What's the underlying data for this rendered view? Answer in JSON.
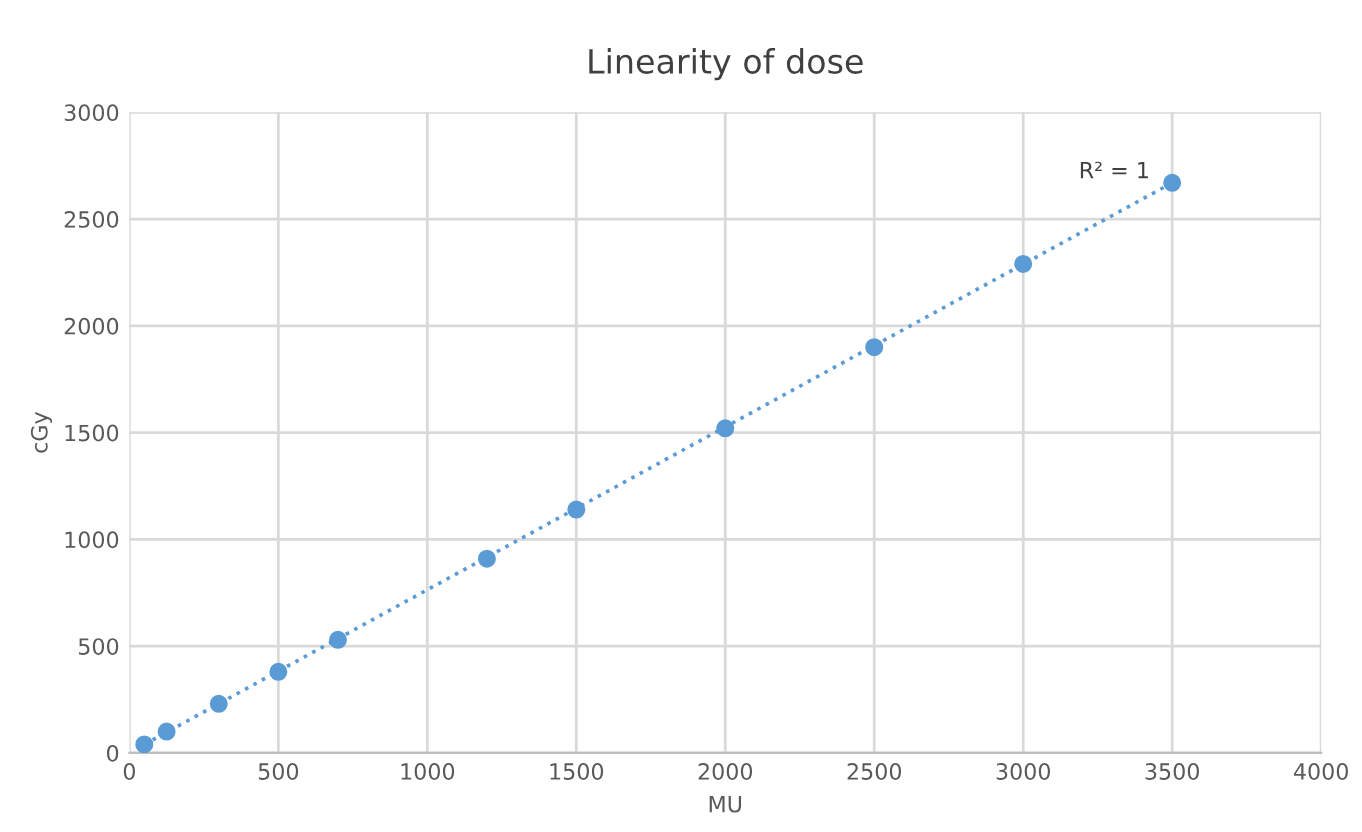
{
  "chart_data": {
    "type": "scatter",
    "title": "Linearity of dose",
    "xlabel": "MU",
    "ylabel": "cGy",
    "series": [
      {
        "color": "#5b9bd5",
        "x": [
          50,
          125,
          300,
          500,
          700,
          1200,
          1500,
          2000,
          2500,
          3000,
          3500
        ],
        "values": [
          40,
          100,
          230,
          380,
          530,
          910,
          1140,
          1520,
          1900,
          2290,
          2670
        ]
      },
      {
        "type": "line",
        "color": "#5b9bd5",
        "line_style": "dotted",
        "marker": "none",
        "x": [
          50,
          3500
        ],
        "values": [
          40,
          2670
        ]
      }
    ],
    "annotations": [
      {
        "text": "R² = 1",
        "x": 3500,
        "y": 2670
      }
    ],
    "xlim": [
      0,
      4000
    ],
    "xticks": [
      0,
      500,
      1000,
      1500,
      2000,
      2500,
      3000,
      3500,
      4000
    ],
    "ylim": [
      0,
      3000
    ],
    "yticks": [
      0,
      500,
      1000,
      1500,
      2000,
      2500,
      3000
    ],
    "grid": true,
    "marker": "circle",
    "legend": false
  }
}
